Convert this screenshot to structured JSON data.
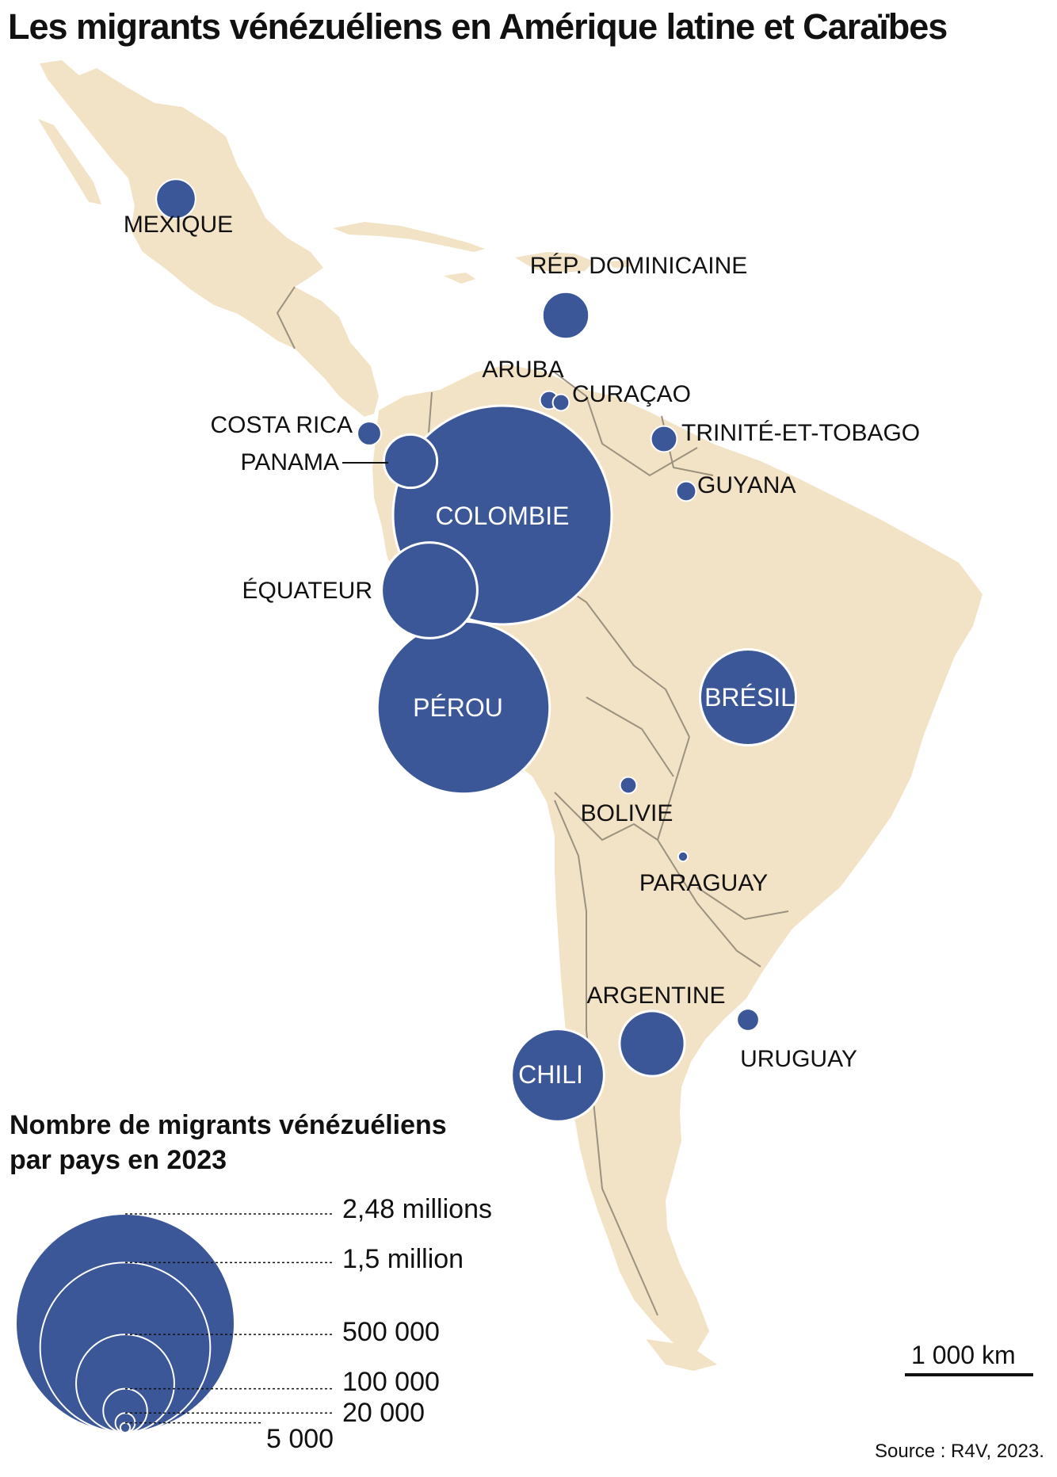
{
  "title": "Les migrants vénézuéliens en Amérique latine et Caraïbes",
  "colors": {
    "land": "#f3e3c6",
    "border": "#9a917f",
    "bubble": "#3b5797",
    "bubble_stroke": "#ffffff"
  },
  "countries": [
    {
      "id": "mexique",
      "label": "MEXIQUE",
      "migrants": 80000
    },
    {
      "id": "rep-dominicaine",
      "label": "RÉP. DOMINICAINE",
      "migrants": 115000
    },
    {
      "id": "aruba",
      "label": "ARUBA",
      "migrants": 17000
    },
    {
      "id": "curacao",
      "label": "CURAÇAO",
      "migrants": 14000
    },
    {
      "id": "costa-rica",
      "label": "COSTA RICA",
      "migrants": 29000
    },
    {
      "id": "panama",
      "label": "PANAMA",
      "migrants": 147000
    },
    {
      "id": "trinite-et-tobago",
      "label": "TRINITÉ-ET-TOBAGO",
      "migrants": 35000
    },
    {
      "id": "guyana",
      "label": "GUYANA",
      "migrants": 20000
    },
    {
      "id": "colombie",
      "label": "COLOMBIE",
      "migrants": 2480000
    },
    {
      "id": "equateur",
      "label": "ÉQUATEUR",
      "migrants": 475000
    },
    {
      "id": "perou",
      "label": "PÉROU",
      "migrants": 1540000
    },
    {
      "id": "bresil",
      "label": "BRÉSIL",
      "migrants": 477000
    },
    {
      "id": "bolivie",
      "label": "BOLIVIE",
      "migrants": 14000
    },
    {
      "id": "paraguay",
      "label": "PARAGUAY",
      "migrants": 5000
    },
    {
      "id": "argentine",
      "label": "ARGENTINE",
      "migrants": 220000
    },
    {
      "id": "chili",
      "label": "CHILI",
      "migrants": 444000
    },
    {
      "id": "uruguay",
      "label": "URUGUAY",
      "migrants": 25000
    }
  ],
  "legend": {
    "title_line1": "Nombre de migrants vénézuéliens",
    "title_line2": "par pays en 2023",
    "items": [
      {
        "label": "2,48 millions",
        "value": 2480000
      },
      {
        "label": "1,5 million",
        "value": 1500000
      },
      {
        "label": "500 000",
        "value": 500000
      },
      {
        "label": "100 000",
        "value": 100000
      },
      {
        "label": "20 000",
        "value": 20000
      },
      {
        "label": "5 000",
        "value": 5000
      }
    ]
  },
  "scale": {
    "label": "1 000 km"
  },
  "source": "Source : R4V, 2023."
}
